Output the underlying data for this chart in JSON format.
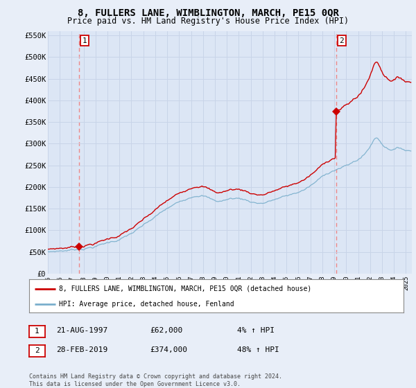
{
  "title": "8, FULLERS LANE, WIMBLINGTON, MARCH, PE15 0QR",
  "subtitle": "Price paid vs. HM Land Registry's House Price Index (HPI)",
  "title_fontsize": 10,
  "subtitle_fontsize": 8.5,
  "background_color": "#e8eef8",
  "plot_background_color": "#dce6f5",
  "ylim": [
    0,
    560000
  ],
  "yticks": [
    0,
    50000,
    100000,
    150000,
    200000,
    250000,
    300000,
    350000,
    400000,
    450000,
    500000,
    550000
  ],
  "ytick_labels": [
    "£0",
    "£50K",
    "£100K",
    "£150K",
    "£200K",
    "£250K",
    "£300K",
    "£350K",
    "£400K",
    "£450K",
    "£500K",
    "£550K"
  ],
  "xlim_start": 1995.0,
  "xlim_end": 2025.5,
  "xtick_years": [
    1995,
    1996,
    1997,
    1998,
    1999,
    2000,
    2001,
    2002,
    2003,
    2004,
    2005,
    2006,
    2007,
    2008,
    2009,
    2010,
    2011,
    2012,
    2013,
    2014,
    2015,
    2016,
    2017,
    2018,
    2019,
    2020,
    2021,
    2022,
    2023,
    2024,
    2025
  ],
  "sale1_x": 1997.64,
  "sale1_y": 62000,
  "sale1_label": "1",
  "sale1_date": "21-AUG-1997",
  "sale1_price": "£62,000",
  "sale1_hpi": "4% ↑ HPI",
  "sale2_x": 2019.17,
  "sale2_y": 374000,
  "sale2_label": "2",
  "sale2_date": "28-FEB-2019",
  "sale2_price": "£374,000",
  "sale2_hpi": "48% ↑ HPI",
  "red_line_color": "#cc0000",
  "blue_line_color": "#7aafcc",
  "dashed_line_color": "#ee8888",
  "grid_color": "#c8d4e8",
  "legend_label_red": "8, FULLERS LANE, WIMBLINGTON, MARCH, PE15 0QR (detached house)",
  "legend_label_blue": "HPI: Average price, detached house, Fenland",
  "footer_text": "Contains HM Land Registry data © Crown copyright and database right 2024.\nThis data is licensed under the Open Government Licence v3.0."
}
